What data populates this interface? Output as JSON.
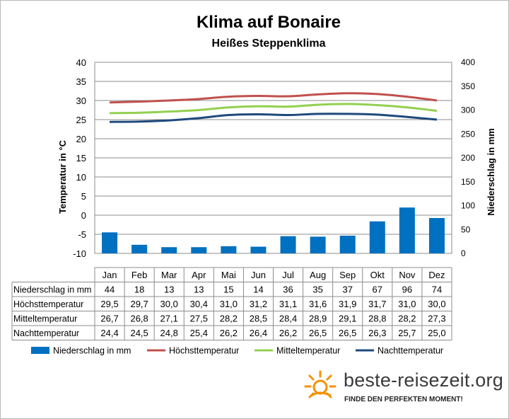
{
  "chart_data": {
    "type": "bar+line",
    "title": "Klima auf Bonaire",
    "subtitle": "Heißes Steppenklima",
    "categories": [
      "Jan",
      "Feb",
      "Mar",
      "Apr",
      "Mai",
      "Jun",
      "Jul",
      "Aug",
      "Sep",
      "Okt",
      "Nov",
      "Dez"
    ],
    "y_left": {
      "label": "Temperatur in °C",
      "min": -10,
      "max": 40,
      "step": 5
    },
    "y_right": {
      "label": "Niederschlag in mm",
      "min": 0,
      "max": 400,
      "step": 50
    },
    "grid": true,
    "legend_position": "bottom",
    "bars": {
      "name": "Niederschlag in mm",
      "axis": "right",
      "color": "#0070c0",
      "values": [
        44,
        18,
        13,
        13,
        15,
        14,
        36,
        35,
        37,
        67,
        96,
        74
      ]
    },
    "series": [
      {
        "name": "Höchsttemperatur",
        "axis": "left",
        "color": "#c0504d",
        "values": [
          29.5,
          29.7,
          30.0,
          30.4,
          31.0,
          31.2,
          31.1,
          31.6,
          31.9,
          31.7,
          31.0,
          30.0
        ]
      },
      {
        "name": "Mitteltemperatur",
        "axis": "left",
        "color": "#92d050",
        "values": [
          26.7,
          26.8,
          27.1,
          27.5,
          28.2,
          28.5,
          28.4,
          28.9,
          29.1,
          28.8,
          28.2,
          27.3
        ]
      },
      {
        "name": "Nachttemperatur",
        "axis": "left",
        "color": "#1f497d",
        "values": [
          24.4,
          24.5,
          24.8,
          25.4,
          26.2,
          26.4,
          26.2,
          26.5,
          26.5,
          26.3,
          25.7,
          25.0
        ]
      }
    ],
    "table": {
      "rows": [
        {
          "label": "Niederschlag in mm",
          "values": [
            "44",
            "18",
            "13",
            "13",
            "15",
            "14",
            "36",
            "35",
            "37",
            "67",
            "96",
            "74"
          ]
        },
        {
          "label": "Höchsttemperatur",
          "values": [
            "29,5",
            "29,7",
            "30,0",
            "30,4",
            "31,0",
            "31,2",
            "31,1",
            "31,6",
            "31,9",
            "31,7",
            "31,0",
            "30,0"
          ]
        },
        {
          "label": "Mitteltemperatur",
          "values": [
            "26,7",
            "26,8",
            "27,1",
            "27,5",
            "28,2",
            "28,5",
            "28,4",
            "28,9",
            "29,1",
            "28,8",
            "28,2",
            "27,3"
          ]
        },
        {
          "label": "Nachttemperatur",
          "values": [
            "24,4",
            "24,5",
            "24,8",
            "25,4",
            "26,2",
            "26,4",
            "26,2",
            "26,5",
            "26,5",
            "26,3",
            "25,7",
            "25,0"
          ]
        }
      ]
    }
  },
  "brand": {
    "name": "beste-reisezeit.org",
    "slogan": "FINDE DEN PERFEKTEN MOMENT!",
    "icon": "sun-icon",
    "accent": "#f39200"
  }
}
